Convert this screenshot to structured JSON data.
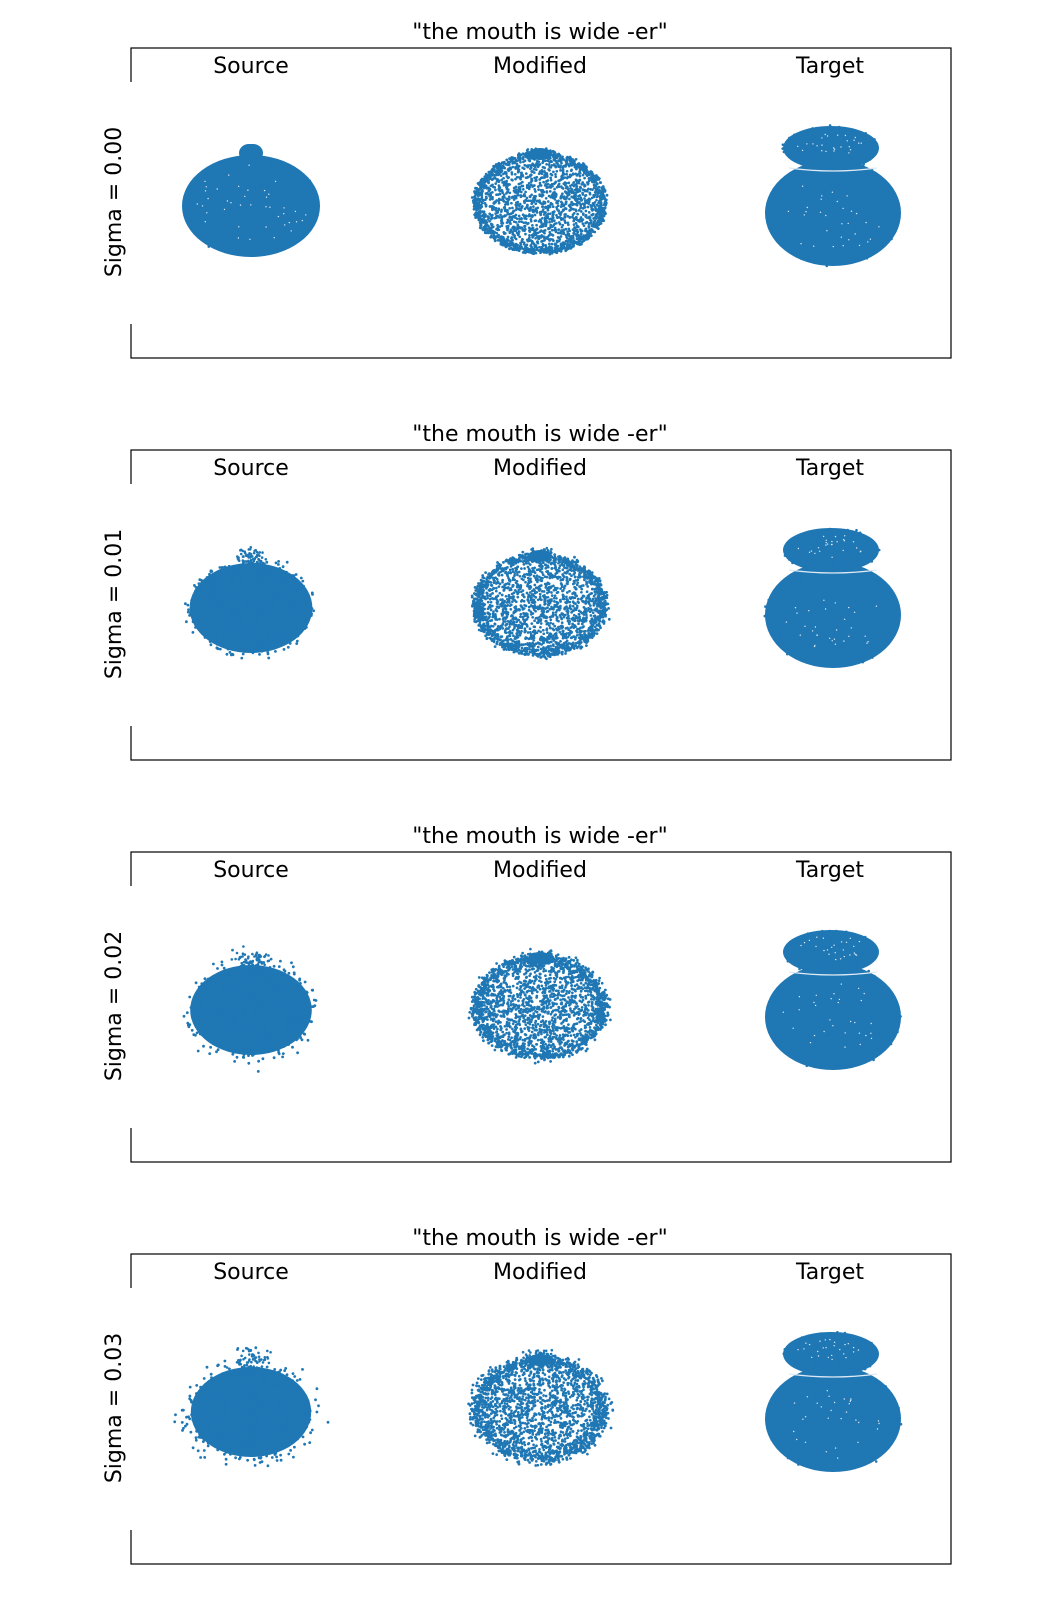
{
  "chart_data": [
    {
      "type": "scatter",
      "title": "\"the mouth is wide -er\"",
      "ylabel": "Sigma = 0.00",
      "sigma": 0.0,
      "columns": [
        "Source",
        "Modified",
        "Target"
      ],
      "series": [
        {
          "shape": "source",
          "noise": 0.0
        },
        {
          "shape": "modified",
          "noise": 0.0
        },
        {
          "shape": "target",
          "noise": 0.0
        }
      ],
      "marker_color": "#1f77b4",
      "grid": false,
      "axes_ticks": false
    },
    {
      "type": "scatter",
      "title": "\"the mouth is wide -er\"",
      "ylabel": "Sigma = 0.01",
      "sigma": 0.01,
      "columns": [
        "Source",
        "Modified",
        "Target"
      ],
      "series": [
        {
          "shape": "source",
          "noise": 0.01
        },
        {
          "shape": "modified",
          "noise": 0.01
        },
        {
          "shape": "target",
          "noise": 0.0
        }
      ],
      "marker_color": "#1f77b4",
      "grid": false,
      "axes_ticks": false
    },
    {
      "type": "scatter",
      "title": "\"the mouth is wide -er\"",
      "ylabel": "Sigma = 0.02",
      "sigma": 0.02,
      "columns": [
        "Source",
        "Modified",
        "Target"
      ],
      "series": [
        {
          "shape": "source",
          "noise": 0.02
        },
        {
          "shape": "modified",
          "noise": 0.02
        },
        {
          "shape": "target",
          "noise": 0.0
        }
      ],
      "marker_color": "#1f77b4",
      "grid": false,
      "axes_ticks": false
    },
    {
      "type": "scatter",
      "title": "\"the mouth is wide -er\"",
      "ylabel": "Sigma = 0.03",
      "sigma": 0.03,
      "columns": [
        "Source",
        "Modified",
        "Target"
      ],
      "series": [
        {
          "shape": "source",
          "noise": 0.03
        },
        {
          "shape": "modified",
          "noise": 0.03
        },
        {
          "shape": "target",
          "noise": 0.0
        }
      ],
      "marker_color": "#1f77b4",
      "grid": false,
      "axes_ticks": false
    }
  ]
}
